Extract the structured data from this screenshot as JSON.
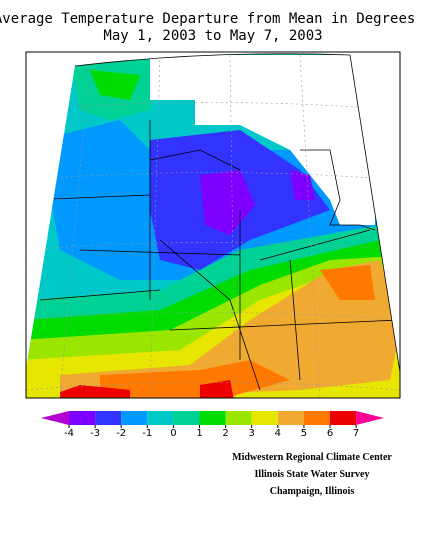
{
  "title": [
    "Average Temperature Departure from Mean in Degrees F",
    "May 1, 2003 to May 7, 2003"
  ],
  "legend": {
    "ticks": [
      -4,
      -3,
      -2,
      -1,
      0,
      1,
      2,
      3,
      4,
      5,
      6,
      7
    ],
    "colors": [
      "#b400d2",
      "#8000ff",
      "#3333ff",
      "#0099ff",
      "#00c8c8",
      "#00d296",
      "#00dc00",
      "#9ae600",
      "#e6e600",
      "#f0aa32",
      "#ff7800",
      "#ee0000",
      "#ff0096"
    ]
  },
  "credits": [
    "Midwestern Regional Climate Center",
    "Illinois State Water Survey",
    "Champaign, Illinois"
  ]
}
